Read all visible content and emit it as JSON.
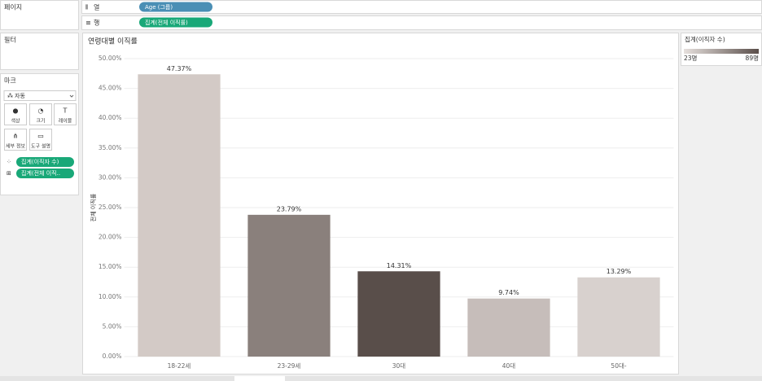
{
  "shelves": {
    "columns": {
      "label": "열",
      "pill": "Age (그룹)"
    },
    "rows": {
      "label": "행",
      "pill": "집계(전체 이직률)"
    }
  },
  "left_panel": {
    "pages": "페이지",
    "filters": "필터",
    "marks": {
      "title": "마크",
      "mark_type": "자동",
      "buttons": [
        "색상",
        "크기",
        "레이블",
        "세부 정보",
        "도구 설명"
      ],
      "pills": [
        "집계(이직자 수)",
        "집계(전체 이직.."
      ]
    }
  },
  "legend": {
    "title": "집계(이직자 수)",
    "min": "23명",
    "max": "89명"
  },
  "chart_data": {
    "type": "bar",
    "title": "연령대별 이직률",
    "y_label": "전체 이직률",
    "categories": [
      "18-22세",
      "23-29세",
      "30대",
      "40대",
      "50대-"
    ],
    "values": [
      47.37,
      23.79,
      14.31,
      9.74,
      13.29
    ],
    "value_labels": [
      "47.37%",
      "23.79%",
      "14.31%",
      "9.74%",
      "13.29%"
    ],
    "colors": [
      "#d3cac6",
      "#8a807c",
      "#594e4a",
      "#c6bdba",
      "#d8d1ce"
    ],
    "ylim": [
      0,
      50
    ],
    "yticks": [
      {
        "value": 0,
        "label": "0.00%"
      },
      {
        "value": 5,
        "label": "5.00%"
      },
      {
        "value": 10,
        "label": "10.00%"
      },
      {
        "value": 15,
        "label": "15.00%"
      },
      {
        "value": 20,
        "label": "20.00%"
      },
      {
        "value": 25,
        "label": "25.00%"
      },
      {
        "value": 30,
        "label": "30.00%"
      },
      {
        "value": 35,
        "label": "35.00%"
      },
      {
        "value": 40,
        "label": "40.00%"
      },
      {
        "value": 45,
        "label": "45.00%"
      },
      {
        "value": 50,
        "label": "50.00%"
      }
    ],
    "grid": true
  }
}
